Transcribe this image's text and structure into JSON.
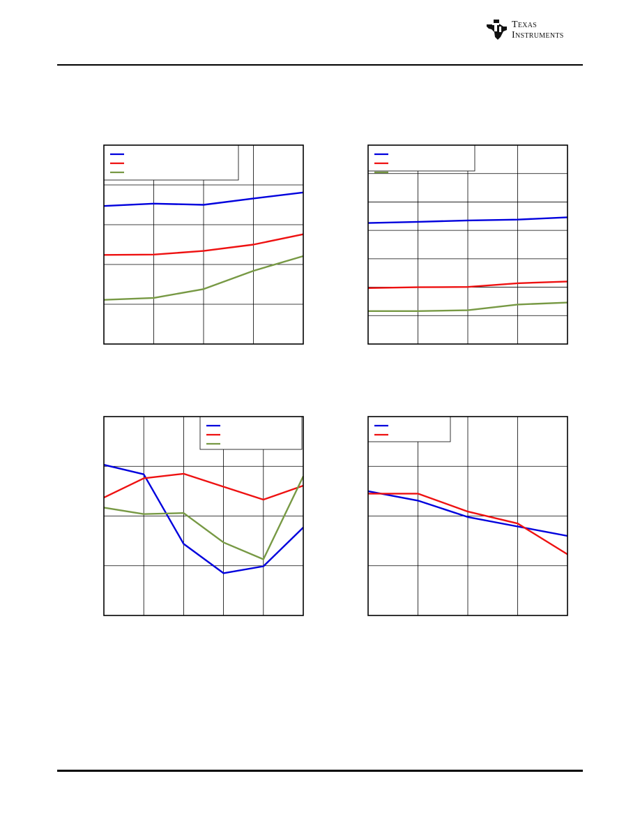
{
  "header": {
    "brand": "Texas\nInstruments",
    "logo_icon": "ti-state-emblem-icon"
  },
  "colors": {
    "blue": "#0000dd",
    "red": "#ee1111",
    "green": "#779944",
    "grid": "#000000"
  },
  "chart_data": [
    {
      "type": "line",
      "x": [
        0,
        1,
        2,
        3,
        4
      ],
      "ylim": [
        0,
        5
      ],
      "xlim": [
        0,
        4
      ],
      "grid": true,
      "legend": "top-left",
      "series": [
        {
          "color": "#0000dd",
          "values": [
            3.47,
            3.53,
            3.5,
            3.66,
            3.81
          ]
        },
        {
          "color": "#ee1111",
          "values": [
            2.24,
            2.25,
            2.34,
            2.5,
            2.76
          ]
        },
        {
          "color": "#779944",
          "values": [
            1.11,
            1.16,
            1.38,
            1.84,
            2.21
          ]
        }
      ]
    },
    {
      "type": "line",
      "x": [
        0,
        1,
        2,
        3,
        4
      ],
      "ylim": [
        0,
        7
      ],
      "xlim": [
        0,
        4
      ],
      "grid": true,
      "legend": "top-left",
      "series": [
        {
          "color": "#0000dd",
          "values": [
            4.26,
            4.3,
            4.35,
            4.38,
            4.46
          ]
        },
        {
          "color": "#ee1111",
          "values": [
            1.97,
            2.0,
            2.01,
            2.14,
            2.2
          ]
        },
        {
          "color": "#779944",
          "values": [
            1.16,
            1.16,
            1.19,
            1.39,
            1.46
          ]
        }
      ]
    },
    {
      "type": "line",
      "x": [
        0,
        1,
        2,
        3,
        4,
        5
      ],
      "ylim": [
        0,
        4
      ],
      "xlim": [
        0,
        5
      ],
      "grid": true,
      "legend": "top-right",
      "series": [
        {
          "color": "#0000dd",
          "values": [
            3.03,
            2.84,
            1.44,
            0.85,
            0.99,
            1.77
          ]
        },
        {
          "color": "#ee1111",
          "values": [
            2.37,
            2.76,
            2.85,
            2.59,
            2.33,
            2.61
          ]
        },
        {
          "color": "#779944",
          "values": [
            2.17,
            2.04,
            2.06,
            1.47,
            1.13,
            2.8
          ]
        }
      ]
    },
    {
      "type": "line",
      "x": [
        0,
        1,
        2,
        3,
        4
      ],
      "ylim": [
        0,
        4
      ],
      "xlim": [
        0,
        4
      ],
      "grid": true,
      "legend": "top-left",
      "series": [
        {
          "color": "#0000dd",
          "values": [
            2.5,
            2.31,
            1.98,
            1.79,
            1.6
          ]
        },
        {
          "color": "#ee1111",
          "values": [
            2.45,
            2.45,
            2.09,
            1.85,
            1.23
          ]
        }
      ]
    }
  ]
}
